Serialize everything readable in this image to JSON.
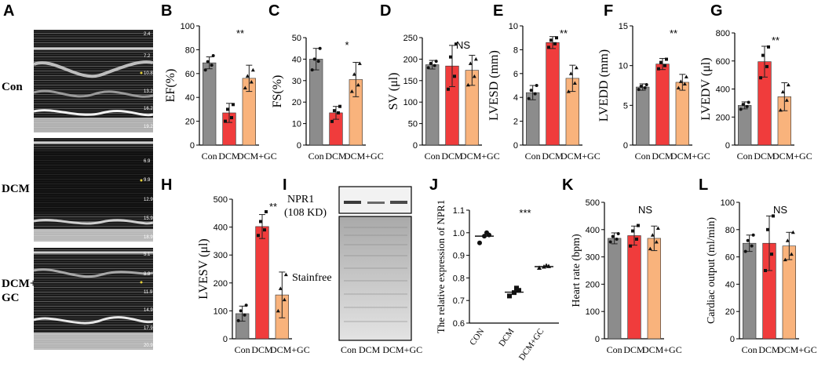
{
  "colors": {
    "con": "#8c8c8c",
    "dcm": "#f03c3c",
    "gc": "#f9b37c",
    "axis": "#000000",
    "echo_tick": "#e6d23c"
  },
  "panel_letters": {
    "A": "A",
    "B": "B",
    "C": "C",
    "D": "D",
    "E": "E",
    "F": "F",
    "G": "G",
    "H": "H",
    "I": "I",
    "J": "J",
    "K": "K",
    "L": "L"
  },
  "panel_a": {
    "rows": [
      {
        "label": "Con",
        "depth_ticks": [
          "2.4",
          "7.2",
          "10.8",
          "13.2",
          "16.2",
          "19.2"
        ]
      },
      {
        "label": "DCM",
        "depth_ticks": [
          "6.9",
          "9.9",
          "12.9",
          "15.9",
          "18.9"
        ]
      },
      {
        "label_line1": "DCM+",
        "label_line2": "GC",
        "depth_ticks": [
          "5.1",
          "8.9",
          "11.9",
          "14.9",
          "17.9",
          "20.9"
        ]
      }
    ]
  },
  "panel_i": {
    "band_label_line1": "NPR1",
    "band_label_line2": "(108 KD)",
    "stain_label": "Stainfree",
    "lane_labels": "Con DCM  DCM+GC"
  },
  "chart_data": [
    {
      "id": "B",
      "type": "bar",
      "ylabel": "EF(%)",
      "ylim": [
        0,
        100
      ],
      "yticks": [
        "0",
        "20",
        "40",
        "60",
        "80",
        "100"
      ],
      "categories": [
        "Con",
        "DCM",
        "DCM+GC"
      ],
      "values": [
        69,
        27,
        56
      ],
      "errors": [
        5,
        8,
        11
      ],
      "points": [
        [
          63,
          67,
          70,
          75
        ],
        [
          20,
          23,
          30,
          34
        ],
        [
          48,
          53,
          58,
          63
        ]
      ],
      "sig": "**",
      "xlabels": [
        "Con",
        "DCM",
        "DCM+GC"
      ]
    },
    {
      "id": "C",
      "type": "bar",
      "ylabel": "FS(%)",
      "ylim": [
        0,
        50
      ],
      "yticks": [
        "0",
        "10",
        "20",
        "30",
        "40",
        "50"
      ],
      "categories": [
        "Con",
        "DCM",
        "DCM+GC"
      ],
      "values": [
        40,
        15,
        30.5
      ],
      "errors": [
        5,
        3,
        8
      ],
      "points": [
        [
          35,
          39,
          40,
          45
        ],
        [
          11,
          15,
          16,
          18
        ],
        [
          25,
          28,
          33,
          38
        ]
      ],
      "sig": "*",
      "xlabels": [
        "Con",
        "DCM",
        "DCM+GC"
      ]
    },
    {
      "id": "D",
      "type": "bar",
      "ylabel": "SV (μl)",
      "ylim": [
        0,
        250
      ],
      "yticks": [
        "0",
        "50",
        "100",
        "150",
        "200",
        "250"
      ],
      "categories": [
        "Con",
        "DCM",
        "DCM+GC"
      ],
      "values": [
        187,
        184,
        174
      ],
      "errors": [
        10,
        48,
        35
      ],
      "points": [
        [
          180,
          185,
          190,
          195
        ],
        [
          130,
          160,
          205,
          235
        ],
        [
          140,
          160,
          190,
          200
        ]
      ],
      "sig": "NS",
      "xlabels": [
        "Con",
        "DCM",
        "DCM+GC"
      ]
    },
    {
      "id": "E",
      "type": "bar",
      "ylabel": "LVESD (mm)",
      "ylim": [
        0,
        10
      ],
      "yticks": [
        "0",
        "2",
        "4",
        "6",
        "8",
        "10"
      ],
      "categories": [
        "Con",
        "DCM",
        "DCM+GC"
      ],
      "values": [
        4.4,
        8.6,
        5.6
      ],
      "errors": [
        0.6,
        0.5,
        1.1
      ],
      "points": [
        [
          3.9,
          4.3,
          4.6,
          5.0
        ],
        [
          8.2,
          8.5,
          8.8,
          9.0
        ],
        [
          4.5,
          5.2,
          6.0,
          6.5
        ]
      ],
      "sig": "**",
      "xlabels": [
        "Con",
        "DCM",
        "DCM+GC"
      ]
    },
    {
      "id": "F",
      "type": "bar",
      "ylabel": "LVEDD (mm)",
      "ylim": [
        0,
        15
      ],
      "yticks": [
        "0",
        "5",
        "10",
        "15"
      ],
      "categories": [
        "Con",
        "DCM",
        "DCM+GC"
      ],
      "values": [
        7.3,
        10.2,
        7.9
      ],
      "errors": [
        0.4,
        0.7,
        1.0
      ],
      "points": [
        [
          7.0,
          7.2,
          7.4,
          7.6
        ],
        [
          9.6,
          10.0,
          10.4,
          10.8
        ],
        [
          7.2,
          7.7,
          8.0,
          8.6
        ]
      ],
      "sig": "**",
      "xlabels": [
        "Con",
        "DCM",
        "DCM+GC"
      ]
    },
    {
      "id": "G",
      "type": "bar",
      "ylabel": "LVEDV (μl)",
      "ylim": [
        0,
        800
      ],
      "yticks": [
        "0",
        "200",
        "400",
        "600",
        "800"
      ],
      "categories": [
        "Con",
        "DCM",
        "DCM+GC"
      ],
      "values": [
        283,
        595,
        345
      ],
      "errors": [
        25,
        110,
        100
      ],
      "points": [
        [
          255,
          275,
          290,
          305
        ],
        [
          480,
          560,
          640,
          700
        ],
        [
          250,
          320,
          380,
          430
        ]
      ],
      "sig": "**",
      "xlabels": [
        "Con",
        "DCM",
        "DCM+GC"
      ]
    },
    {
      "id": "H",
      "type": "bar",
      "ylabel": "LVESV (μl)",
      "ylim": [
        0,
        500
      ],
      "yticks": [
        "0",
        "100",
        "200",
        "300",
        "400",
        "500"
      ],
      "categories": [
        "Con",
        "DCM",
        "DCM+GC"
      ],
      "values": [
        90,
        402,
        157
      ],
      "errors": [
        27,
        43,
        82
      ],
      "points": [
        [
          65,
          85,
          100,
          120
        ],
        [
          370,
          390,
          420,
          455
        ],
        [
          100,
          140,
          180,
          230
        ]
      ],
      "sig": "**",
      "xlabels": [
        "Con",
        "DCM",
        "DCM+GC"
      ]
    },
    {
      "id": "J",
      "type": "scatter",
      "ylabel": "The relative expression of NPR1",
      "ylim": [
        0.6,
        1.1
      ],
      "yticks": [
        "0.6",
        "0.7",
        "0.8",
        "0.9",
        "1.0",
        "1.1"
      ],
      "categories": [
        "CON",
        "DCM",
        "DCM+GC"
      ],
      "means": [
        0.985,
        0.737,
        0.85
      ],
      "points": [
        [
          0.955,
          0.985,
          0.99,
          1.0
        ],
        [
          0.72,
          0.735,
          0.745,
          0.755
        ],
        [
          0.845,
          0.85,
          0.852,
          0.855
        ]
      ],
      "sig": "***",
      "xlabels": [
        "CON",
        "DCM",
        "DCM+GC"
      ]
    },
    {
      "id": "K",
      "type": "bar",
      "ylabel": "Heart rate (bpm)",
      "ylim": [
        0,
        500
      ],
      "yticks": [
        "0",
        "100",
        "200",
        "300",
        "400",
        "500"
      ],
      "categories": [
        "Con",
        "DCM",
        "DCM+GC"
      ],
      "values": [
        368,
        378,
        368
      ],
      "errors": [
        20,
        35,
        45
      ],
      "points": [
        [
          355,
          365,
          375,
          385
        ],
        [
          340,
          365,
          395,
          415
        ],
        [
          330,
          355,
          380,
          405
        ]
      ],
      "sig": "NS",
      "xlabels": [
        "Con",
        "DCM",
        "DCM+GC"
      ]
    },
    {
      "id": "L",
      "type": "bar",
      "ylabel": "Cardiac output (ml/min)",
      "ylim": [
        0,
        100
      ],
      "yticks": [
        "0",
        "20",
        "40",
        "60",
        "80",
        "100"
      ],
      "categories": [
        "Con",
        "DCM",
        "DCM+GC"
      ],
      "values": [
        70,
        70,
        68
      ],
      "errors": [
        6,
        20,
        10
      ],
      "points": [
        [
          64,
          68,
          72,
          76
        ],
        [
          50,
          62,
          80,
          90
        ],
        [
          58,
          62,
          72,
          78
        ]
      ],
      "sig": "NS",
      "xlabels": [
        "Con",
        "DCM",
        "DCM+GC"
      ]
    }
  ]
}
